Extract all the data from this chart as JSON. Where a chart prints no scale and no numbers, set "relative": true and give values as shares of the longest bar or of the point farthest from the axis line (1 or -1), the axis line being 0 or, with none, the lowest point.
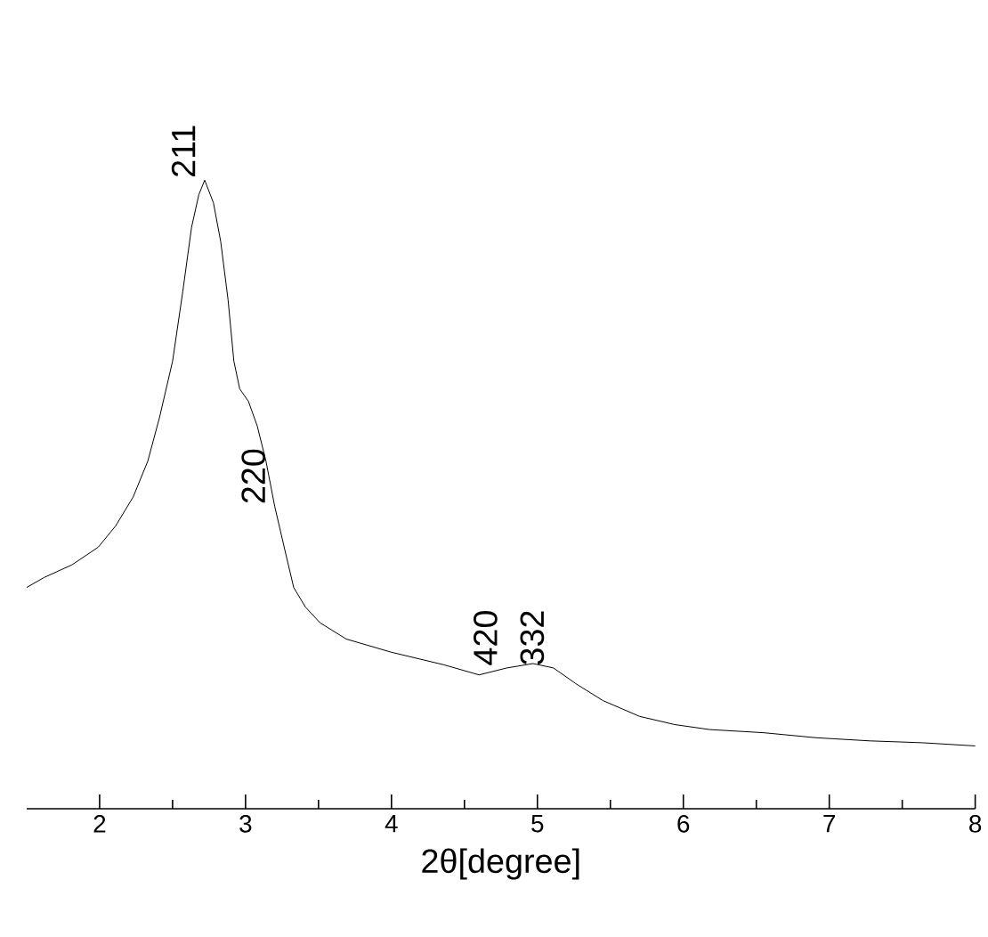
{
  "chart_data": {
    "type": "line",
    "relative": true,
    "xlabel": "2θ[degree]",
    "xlim": [
      1.5,
      8
    ],
    "xticks": [
      2,
      3,
      4,
      5,
      6,
      7,
      8
    ],
    "color": "#000000",
    "marker": "none",
    "line_style": "solid",
    "grid": false,
    "tick_labels": "x",
    "x": [
      1.5,
      1.62,
      1.81,
      1.99,
      2.11,
      2.23,
      2.33,
      2.41,
      2.5,
      2.57,
      2.63,
      2.68,
      2.72,
      2.78,
      2.83,
      2.88,
      2.92,
      2.96,
      3.02,
      3.08,
      3.14,
      3.2,
      3.27,
      3.33,
      3.41,
      3.51,
      3.69,
      4.0,
      4.36,
      4.6,
      4.79,
      4.97,
      5.11,
      5.27,
      5.45,
      5.7,
      5.94,
      6.18,
      6.55,
      6.91,
      7.28,
      7.64,
      8.0
    ],
    "values": [
      0.352,
      0.368,
      0.388,
      0.416,
      0.45,
      0.496,
      0.553,
      0.622,
      0.712,
      0.823,
      0.925,
      0.977,
      1,
      0.964,
      0.902,
      0.81,
      0.712,
      0.668,
      0.648,
      0.609,
      0.553,
      0.481,
      0.411,
      0.352,
      0.321,
      0.296,
      0.27,
      0.249,
      0.229,
      0.213,
      0.224,
      0.231,
      0.224,
      0.198,
      0.172,
      0.147,
      0.134,
      0.126,
      0.121,
      0.113,
      0.108,
      0.105,
      0.1
    ],
    "annotations": [
      {
        "text": "211",
        "x": 2.72,
        "y": 1
      },
      {
        "text": "220",
        "x": 3.2,
        "y": 0.481
      },
      {
        "text": "420",
        "x": 4.79,
        "y": 0.224
      },
      {
        "text": "332",
        "x": 5.11,
        "y": 0.224
      }
    ]
  }
}
